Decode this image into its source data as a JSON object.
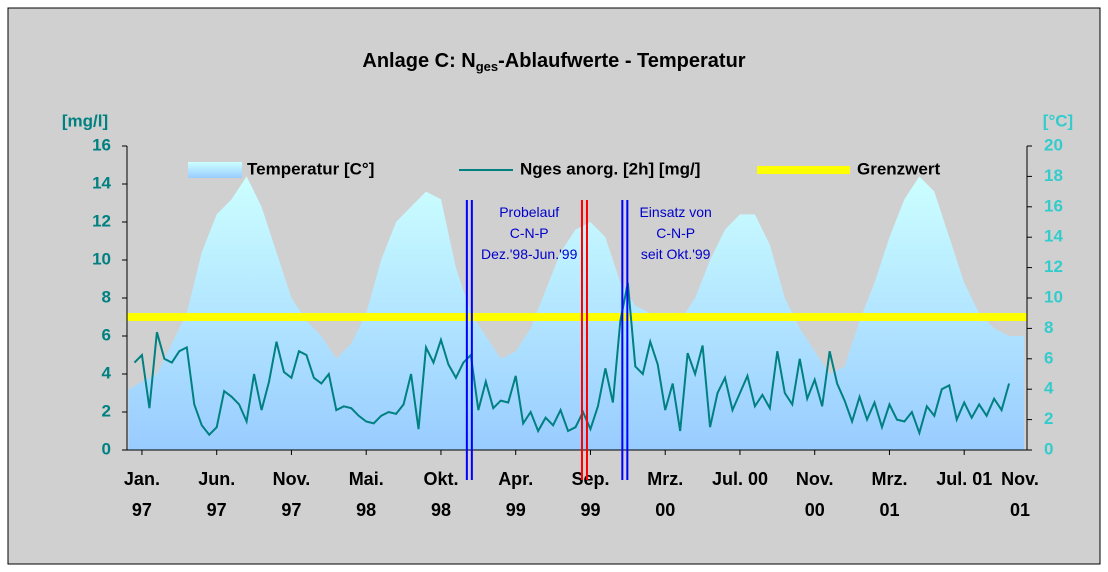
{
  "chart_data": {
    "type": "line_area_dual",
    "title_prefix": "Anlage C: N",
    "title_sub": "ges",
    "title_suffix": "-Ablaufwerte - Temperatur",
    "y_label": "[mg/l]",
    "y2_label": "[°C]",
    "xlim": [
      -1,
      59.2
    ],
    "ylim": [
      0,
      16
    ],
    "y2lim": [
      0,
      20
    ],
    "yticks": [
      0,
      2,
      4,
      6,
      8,
      10,
      12,
      14,
      16
    ],
    "y2ticks": [
      0,
      2,
      4,
      6,
      8,
      10,
      12,
      14,
      16,
      18,
      20
    ],
    "xticks": [
      {
        "value": 0,
        "label": "Jan.\n97"
      },
      {
        "value": 5,
        "label": "Jun.\n97"
      },
      {
        "value": 10,
        "label": "Nov.\n97"
      },
      {
        "value": 15,
        "label": "Mai.\n98"
      },
      {
        "value": 20,
        "label": "Okt.\n98"
      },
      {
        "value": 25,
        "label": "Apr.\n99"
      },
      {
        "value": 30,
        "label": "Sep.\n99"
      },
      {
        "value": 35,
        "label": "Mrz.\n00"
      },
      {
        "value": 40,
        "label": "Jul. 00"
      },
      {
        "value": 45,
        "label": "Nov.\n00"
      },
      {
        "value": 50,
        "label": "Mrz.\n01"
      },
      {
        "value": 55,
        "label": "Jul. 01"
      },
      {
        "value": 60,
        "label": "Nov.\n01"
      }
    ],
    "series": [
      {
        "name": "Temperatur [C°]",
        "kind": "area",
        "axis": "y2",
        "color": "#99ccff",
        "x": [
          -0.9,
          0,
          1,
          2,
          3,
          4,
          5,
          6,
          7,
          8,
          9,
          10,
          11,
          12,
          13,
          14,
          15,
          16,
          17,
          18,
          19,
          20,
          21,
          22,
          23,
          24,
          25,
          26,
          27,
          28,
          29,
          30,
          31,
          32,
          33,
          34,
          35,
          36,
          37,
          38,
          39,
          40,
          41,
          42,
          43,
          44,
          45,
          46,
          47,
          48,
          49,
          50,
          51,
          52,
          53,
          54,
          55,
          56,
          57,
          58,
          59
        ],
        "values": [
          4,
          4.5,
          5,
          7,
          9,
          13,
          15.5,
          16.5,
          18,
          16,
          13,
          10,
          8.5,
          7.5,
          6,
          7,
          9,
          12.5,
          15,
          16,
          17,
          16.5,
          12,
          9,
          7.5,
          6,
          6.5,
          8,
          10.5,
          13,
          14.5,
          15,
          14,
          11,
          9.5,
          9,
          8.5,
          8.5,
          10,
          12.5,
          14.5,
          15.5,
          15.5,
          13.5,
          10,
          8,
          6.5,
          5,
          5.5,
          8.5,
          11,
          14,
          16.5,
          18,
          17,
          14,
          11,
          9,
          8,
          7.5,
          7.5
        ]
      },
      {
        "name": "Nges anorg. [2h] [mg/]",
        "kind": "line",
        "axis": "y",
        "color": "#008080",
        "x": [
          -0.5,
          0,
          0.5,
          1,
          1.5,
          2,
          2.5,
          3,
          3.5,
          4,
          4.5,
          5,
          5.5,
          6,
          6.5,
          7,
          7.5,
          8,
          8.5,
          9,
          9.5,
          10,
          10.5,
          11,
          11.5,
          12,
          12.5,
          13,
          13.5,
          14,
          14.5,
          15,
          15.5,
          16,
          16.5,
          17,
          17.5,
          18,
          18.5,
          19,
          19.5,
          20,
          20.5,
          21,
          21.5,
          22,
          22.5,
          23,
          23.5,
          24,
          24.5,
          25,
          25.5,
          26,
          26.5,
          27,
          27.5,
          28,
          28.5,
          29,
          29.5,
          30,
          30.5,
          31,
          31.5,
          32,
          32.5,
          33,
          33.5,
          34,
          34.5,
          35,
          35.5,
          36,
          36.5,
          37,
          37.5,
          38,
          38.5,
          39,
          39.5,
          40,
          40.5,
          41,
          41.5,
          42,
          42.5,
          43,
          43.5,
          44,
          44.5,
          45,
          45.5,
          46,
          46.5,
          47,
          47.5,
          48,
          48.5,
          49,
          49.5,
          50,
          50.5,
          51,
          51.5,
          52,
          52.5,
          53,
          53.5,
          54,
          54.5,
          55,
          55.5,
          56,
          56.5,
          57,
          57.5,
          58
        ],
        "values": [
          4.6,
          5.0,
          2.2,
          6.2,
          4.8,
          4.6,
          5.2,
          5.4,
          2.4,
          1.3,
          0.8,
          1.2,
          3.1,
          2.8,
          2.4,
          1.5,
          4.0,
          2.1,
          3.6,
          5.7,
          4.1,
          3.8,
          5.2,
          5.0,
          3.8,
          3.5,
          4.0,
          2.1,
          2.3,
          2.2,
          1.8,
          1.5,
          1.4,
          1.8,
          2.0,
          1.9,
          2.4,
          4.0,
          1.1,
          5.4,
          4.6,
          5.8,
          4.5,
          3.8,
          4.6,
          5.0,
          2.1,
          3.6,
          2.2,
          2.6,
          2.5,
          3.9,
          1.4,
          2.0,
          1.0,
          1.7,
          1.3,
          2.1,
          1.0,
          1.2,
          2.0,
          1.1,
          2.3,
          4.3,
          2.5,
          6.8,
          8.8,
          4.4,
          4.0,
          5.7,
          4.5,
          2.1,
          3.5,
          1.0,
          5.1,
          4.0,
          5.5,
          1.2,
          3.0,
          3.8,
          2.1,
          3.0,
          3.9,
          2.3,
          2.9,
          2.2,
          5.2,
          3.0,
          2.4,
          4.8,
          2.7,
          3.7,
          2.3,
          5.2,
          3.5,
          2.6,
          1.5,
          2.8,
          1.6,
          2.5,
          1.2,
          2.4,
          1.6,
          1.5,
          2.0,
          0.9,
          2.3,
          1.8,
          3.2,
          3.4,
          1.6,
          2.5,
          1.7,
          2.4,
          1.8,
          2.7,
          2.1,
          3.5
        ]
      },
      {
        "name": "Grenzwert",
        "kind": "hline",
        "axis": "y",
        "color": "#ffff00",
        "value": 7
      }
    ],
    "vlines": [
      {
        "x": 21.9,
        "color": "#0000ff"
      },
      {
        "x": 29.6,
        "color": "#ff0000"
      },
      {
        "x": 32.3,
        "color": "#0000ff"
      }
    ],
    "annotations": [
      {
        "x": 25.9,
        "text": "Probelauf\nC-N-P\nDez.'98-Jun.'99"
      },
      {
        "x": 35.7,
        "text": "Einsatz von\nC-N-P\nseit Okt.'99"
      }
    ]
  }
}
